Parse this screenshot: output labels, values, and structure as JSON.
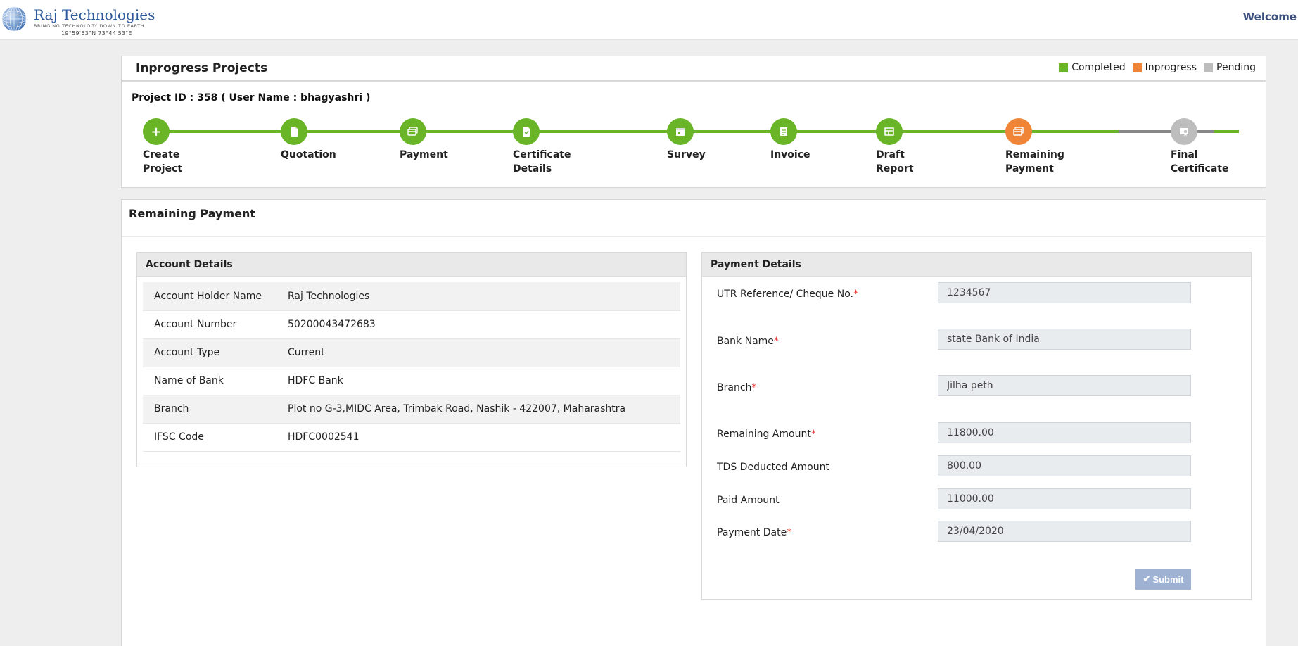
{
  "header": {
    "logo_name": "Raj Technologies",
    "logo_tagline": "BRINGING TECHNOLOGY DOWN TO EARTH",
    "logo_coords": "19°59'53\"N   73°44'53\"E",
    "welcome": "Welcome"
  },
  "projects_card": {
    "title": "Inprogress Projects",
    "legend": [
      {
        "label": "Completed",
        "color": "#6ab527"
      },
      {
        "label": "Inprogress",
        "color": "#f08538"
      },
      {
        "label": "Pending",
        "color": "#bdbdbd"
      }
    ],
    "project_line": "Project ID : 358 ( User Name : bhagyashri )",
    "steps": [
      {
        "line1": "Create",
        "line2": "Project",
        "status": "completed",
        "icon": "plus-icon"
      },
      {
        "line1": "Quotation",
        "line2": "",
        "status": "completed",
        "icon": "document-icon"
      },
      {
        "line1": "Payment",
        "line2": "",
        "status": "completed",
        "icon": "credit-card-icon"
      },
      {
        "line1": "Certificate",
        "line2": "Details",
        "status": "completed",
        "icon": "file-check-icon"
      },
      {
        "line1": "Survey",
        "line2": "",
        "status": "completed",
        "icon": "calendar-icon"
      },
      {
        "line1": "Invoice",
        "line2": "",
        "status": "completed",
        "icon": "list-icon"
      },
      {
        "line1": "Draft",
        "line2": "Report",
        "status": "completed",
        "icon": "table-icon"
      },
      {
        "line1": "Remaining",
        "line2": "Payment",
        "status": "inprogress",
        "icon": "credit-card-icon"
      },
      {
        "line1": "Final",
        "line2": "Certificate",
        "status": "pending",
        "icon": "certificate-icon"
      }
    ],
    "colors": {
      "completed": "#6ab527",
      "inprogress": "#f08538",
      "pending": "#bdbdbd",
      "pending_track": "#888888"
    }
  },
  "remaining": {
    "title": "Remaining Payment",
    "account": {
      "title": "Account Details",
      "rows": [
        {
          "label": "Account Holder Name",
          "value": "Raj Technologies"
        },
        {
          "label": "Account Number",
          "value": "50200043472683"
        },
        {
          "label": "Account Type",
          "value": "Current"
        },
        {
          "label": "Name of Bank",
          "value": "HDFC Bank"
        },
        {
          "label": "Branch",
          "value": "Plot no G-3,MIDC Area, Trimbak Road, Nashik - 422007, Maharashtra"
        },
        {
          "label": "IFSC Code",
          "value": "HDFC0002541"
        }
      ]
    },
    "payment": {
      "title": "Payment Details",
      "fields": {
        "utr": {
          "label": "UTR Reference/ Cheque No.",
          "required": "*",
          "value": "1234567"
        },
        "bank": {
          "label": "Bank Name",
          "required": "*",
          "value": "state Bank of India"
        },
        "branch": {
          "label": "Branch",
          "required": "*",
          "value": "Jilha peth"
        },
        "remaining": {
          "label": "Remaining Amount",
          "required": "*",
          "value": "11800.00"
        },
        "tds": {
          "label": "TDS Deducted Amount",
          "value": "800.00"
        },
        "paid": {
          "label": "Paid Amount",
          "value": "11000.00"
        },
        "date": {
          "label": "Payment Date",
          "required": "*",
          "value": "23/04/2020"
        }
      },
      "submit_label": "Submit"
    }
  }
}
